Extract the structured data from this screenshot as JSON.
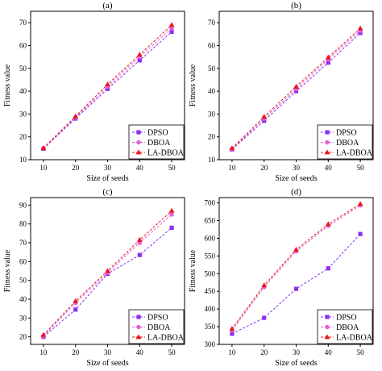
{
  "legend_labels": [
    "DPSO",
    "DBOA",
    "LA-DBOA"
  ],
  "colors": {
    "DPSO": "#8e2ff0",
    "DBOA": "#e05fe0",
    "LA-DBOA": "#e8141e"
  },
  "chart_data": [
    {
      "type": "line",
      "title": "(a)",
      "xlabel": "Size of seeds",
      "ylabel": "Fitness value",
      "x": [
        10,
        20,
        30,
        40,
        50
      ],
      "xticks": [
        10,
        20,
        30,
        40,
        50
      ],
      "xlim": [
        6,
        54
      ],
      "yticks": [
        10,
        20,
        30,
        40,
        50,
        60,
        70
      ],
      "ylim": [
        10,
        75
      ],
      "grid": false,
      "legend": "bottom-right",
      "series": [
        {
          "name": "DPSO",
          "values": [
            14.8,
            28.0,
            41.0,
            53.5,
            66.0
          ]
        },
        {
          "name": "DBOA",
          "values": [
            15.0,
            28.5,
            42.0,
            55.0,
            67.5
          ]
        },
        {
          "name": "LA-DBOA",
          "values": [
            15.1,
            29.0,
            43.0,
            56.0,
            69.0
          ]
        }
      ]
    },
    {
      "type": "line",
      "title": "(b)",
      "xlabel": "Size of seeds",
      "ylabel": "Fitness value",
      "x": [
        10,
        20,
        30,
        40,
        50
      ],
      "xticks": [
        10,
        20,
        30,
        40,
        50
      ],
      "xlim": [
        6,
        54
      ],
      "yticks": [
        10,
        20,
        30,
        40,
        50,
        60,
        70
      ],
      "ylim": [
        10,
        75
      ],
      "grid": false,
      "legend": "bottom-right",
      "series": [
        {
          "name": "DPSO",
          "values": [
            14.5,
            27.0,
            40.0,
            52.5,
            65.5
          ]
        },
        {
          "name": "DBOA",
          "values": [
            14.7,
            28.0,
            41.0,
            54.0,
            66.5
          ]
        },
        {
          "name": "LA-DBOA",
          "values": [
            15.0,
            28.8,
            42.0,
            54.8,
            67.5
          ]
        }
      ]
    },
    {
      "type": "line",
      "title": "(c)",
      "xlabel": "Size of seeds",
      "ylabel": "Fitness value",
      "x": [
        10,
        20,
        30,
        40,
        50
      ],
      "xticks": [
        10,
        20,
        30,
        40,
        50
      ],
      "xlim": [
        6,
        54
      ],
      "yticks": [
        20,
        30,
        40,
        50,
        60,
        70,
        80,
        90
      ],
      "ylim": [
        16,
        94
      ],
      "grid": false,
      "legend": "bottom-right",
      "series": [
        {
          "name": "DPSO",
          "values": [
            20.0,
            34.5,
            53.5,
            63.5,
            78.0
          ]
        },
        {
          "name": "DBOA",
          "values": [
            20.5,
            38.0,
            54.0,
            70.0,
            85.0
          ]
        },
        {
          "name": "LA-DBOA",
          "values": [
            21.0,
            39.0,
            55.0,
            71.5,
            87.0
          ]
        }
      ]
    },
    {
      "type": "line",
      "title": "(d)",
      "xlabel": "Size of seeds",
      "ylabel": "Fitness value",
      "x": [
        10,
        20,
        30,
        40,
        50
      ],
      "xticks": [
        10,
        20,
        30,
        40,
        50
      ],
      "xlim": [
        6,
        54
      ],
      "yticks": [
        300,
        350,
        400,
        450,
        500,
        550,
        600,
        650,
        700
      ],
      "ylim": [
        300,
        715
      ],
      "grid": false,
      "legend": "bottom-right",
      "series": [
        {
          "name": "DPSO",
          "values": [
            330,
            375,
            457,
            515,
            612
          ]
        },
        {
          "name": "DBOA",
          "values": [
            340,
            462,
            563,
            635,
            693
          ]
        },
        {
          "name": "LA-DBOA",
          "values": [
            344,
            467,
            568,
            640,
            697
          ]
        }
      ]
    }
  ]
}
